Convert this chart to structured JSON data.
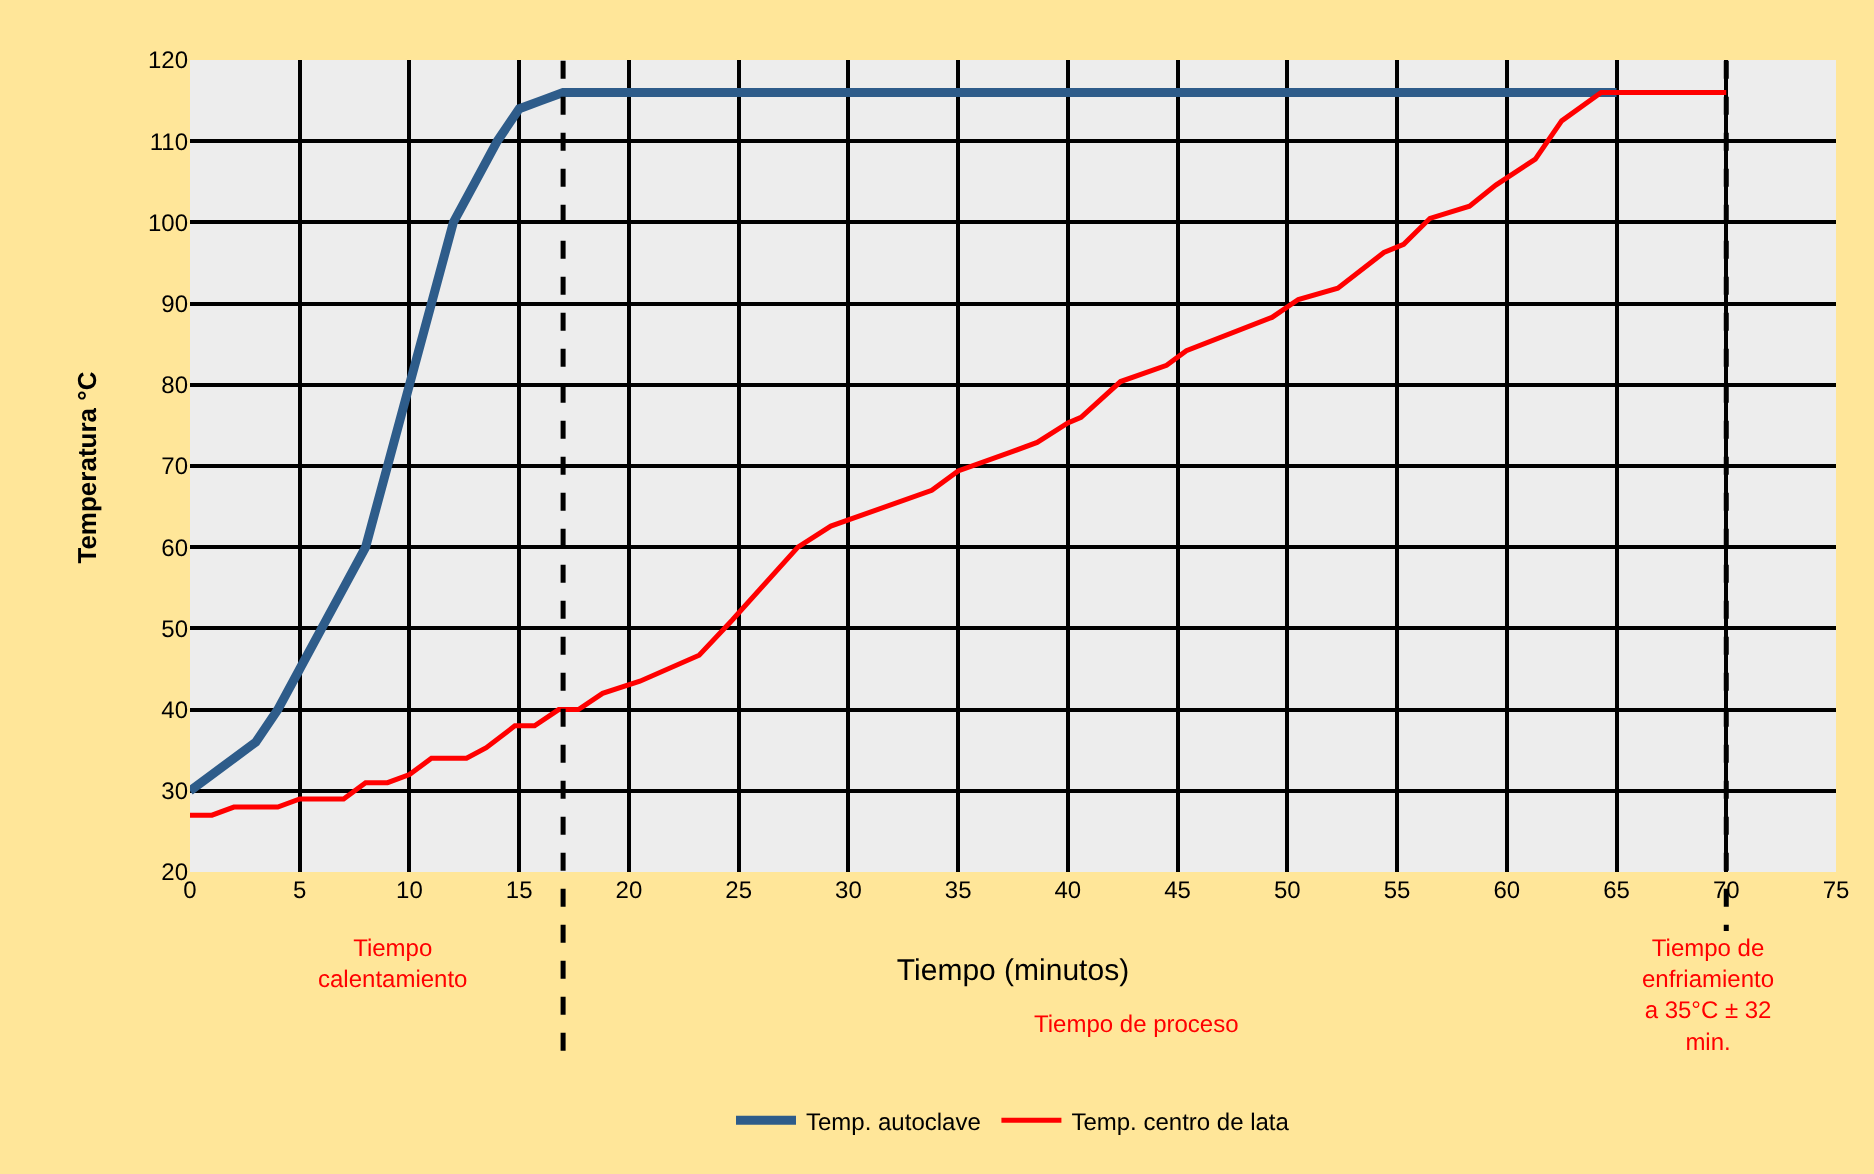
{
  "chart_data": {
    "type": "line",
    "xlabel": "Tiempo (minutos)",
    "ylabel": "Temperatura °C",
    "xlim": [
      0,
      75
    ],
    "xticks": [
      0,
      5,
      10,
      15,
      20,
      25,
      30,
      35,
      40,
      45,
      50,
      55,
      60,
      65,
      70,
      75
    ],
    "ylim": [
      20,
      120
    ],
    "yticks": [
      20,
      30,
      40,
      50,
      60,
      70,
      80,
      90,
      100,
      110,
      120
    ],
    "grid": true,
    "legend": "bottom",
    "marker": "none",
    "line_style": "solid",
    "series": [
      {
        "name": "Temp. autoclave",
        "color": "#2e5c8a",
        "x": [
          0,
          1,
          2,
          3,
          4,
          5,
          6,
          7,
          8,
          9,
          10,
          11,
          12,
          13,
          14,
          15,
          16,
          17,
          65
        ],
        "values": [
          30,
          32,
          34,
          36,
          40,
          45,
          50,
          55,
          60,
          70,
          80,
          90,
          100,
          105,
          110,
          114,
          115,
          116,
          116
        ]
      },
      {
        "name": "Temp. centro de lata",
        "color": "#ff0000",
        "x": [
          0,
          1,
          2,
          4,
          5,
          7,
          8,
          9,
          10,
          11,
          12.6,
          13.5,
          14.8,
          15.7,
          16.8,
          17.7,
          18.8,
          20.5,
          23.2,
          24.7,
          27.7,
          29.2,
          33.8,
          35,
          37.4,
          38.6,
          40,
          40.6,
          42.4,
          44.5,
          45.4,
          49.3,
          50.5,
          52.3,
          54.4,
          55.3,
          56.5,
          58.3,
          59.5,
          61.3,
          62.5,
          64.3,
          65,
          70
        ],
        "values": [
          27,
          27,
          28,
          28,
          29,
          29,
          31,
          31,
          32,
          34,
          34,
          35.3,
          38,
          38,
          40,
          40,
          42,
          43.5,
          46.7,
          51,
          60,
          62.6,
          67,
          69.4,
          71.7,
          72.9,
          75.3,
          76,
          80.4,
          82.4,
          84.2,
          88.3,
          90.5,
          91.9,
          96.3,
          97.3,
          100.5,
          102,
          104.6,
          107.8,
          112.5,
          116,
          116,
          116
        ]
      }
    ],
    "ref_lines": [
      {
        "axis": "x",
        "value": 17,
        "color": "#000000",
        "line_style": "dashed"
      },
      {
        "axis": "x",
        "value": 70,
        "color": "#000000",
        "line_style": "dashed"
      }
    ],
    "annotations": [
      "Tiempo\ncalentamiento",
      "Tiempo de proceso",
      "Tiempo de\nenfriamiento\na 35°C ± 32\nmin."
    ]
  }
}
